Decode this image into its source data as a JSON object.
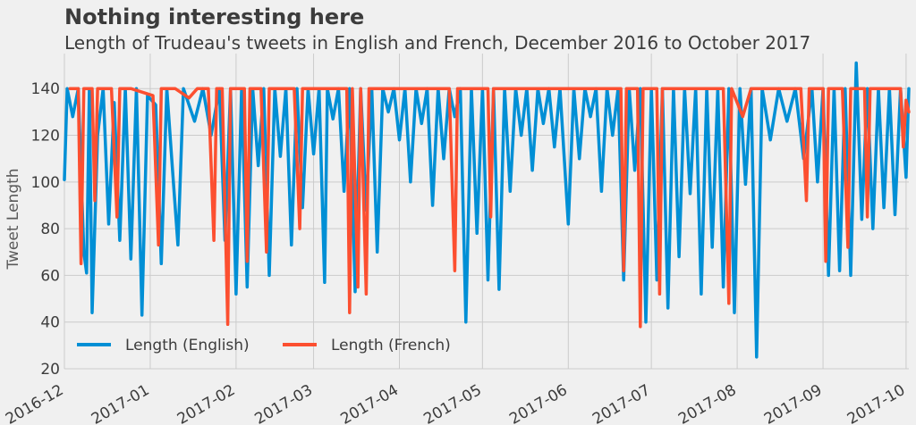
{
  "chart_data": {
    "type": "line",
    "title": "Nothing interesting here",
    "subtitle": "Length of Trudeau's tweets in English and French, December 2016 to October 2017",
    "ylabel": "Tweet Length",
    "xlabel": "",
    "ylim": [
      20,
      155
    ],
    "yticks": [
      20,
      40,
      60,
      80,
      100,
      120,
      140
    ],
    "xlim": [
      "2016-12-01",
      "2017-10-02"
    ],
    "xticks": [
      "2016-12",
      "2017-01",
      "2017-02",
      "2017-03",
      "2017-04",
      "2017-05",
      "2017-06",
      "2017-07",
      "2017-08",
      "2017-09",
      "2017-10"
    ],
    "grid": true,
    "legend": {
      "position": "bottom-left",
      "columns": 2
    },
    "colors": {
      "english": "#008fd5",
      "french": "#fc4f30"
    },
    "series": [
      {
        "name": "Length (English)",
        "color": "#008fd5",
        "points": [
          [
            "2016-12-01",
            101
          ],
          [
            "2016-12-02",
            140
          ],
          [
            "2016-12-04",
            128
          ],
          [
            "2016-12-06",
            140
          ],
          [
            "2016-12-08",
            70
          ],
          [
            "2016-12-09",
            61
          ],
          [
            "2016-12-10",
            140
          ],
          [
            "2016-12-11",
            44
          ],
          [
            "2016-12-13",
            120
          ],
          [
            "2016-12-15",
            140
          ],
          [
            "2016-12-17",
            82
          ],
          [
            "2016-12-19",
            134
          ],
          [
            "2016-12-21",
            75
          ],
          [
            "2016-12-23",
            140
          ],
          [
            "2016-12-25",
            67
          ],
          [
            "2016-12-27",
            140
          ],
          [
            "2016-12-29",
            43
          ],
          [
            "2016-12-31",
            137
          ],
          [
            "2017-01-03",
            133
          ],
          [
            "2017-01-05",
            65
          ],
          [
            "2017-01-07",
            140
          ],
          [
            "2017-01-09",
            106
          ],
          [
            "2017-01-11",
            73
          ],
          [
            "2017-01-13",
            140
          ],
          [
            "2017-01-17",
            126
          ],
          [
            "2017-01-20",
            140
          ],
          [
            "2017-01-23",
            120
          ],
          [
            "2017-01-26",
            140
          ],
          [
            "2017-01-28",
            75
          ],
          [
            "2017-01-30",
            140
          ],
          [
            "2017-02-01",
            52
          ],
          [
            "2017-02-03",
            140
          ],
          [
            "2017-02-05",
            55
          ],
          [
            "2017-02-07",
            140
          ],
          [
            "2017-02-09",
            107
          ],
          [
            "2017-02-11",
            140
          ],
          [
            "2017-02-13",
            60
          ],
          [
            "2017-02-15",
            140
          ],
          [
            "2017-02-17",
            111
          ],
          [
            "2017-02-19",
            140
          ],
          [
            "2017-02-21",
            73
          ],
          [
            "2017-02-23",
            140
          ],
          [
            "2017-02-25",
            89
          ],
          [
            "2017-02-27",
            140
          ],
          [
            "2017-03-01",
            112
          ],
          [
            "2017-03-03",
            140
          ],
          [
            "2017-03-05",
            57
          ],
          [
            "2017-03-06",
            140
          ],
          [
            "2017-03-08",
            127
          ],
          [
            "2017-03-10",
            140
          ],
          [
            "2017-03-12",
            96
          ],
          [
            "2017-03-14",
            140
          ],
          [
            "2017-03-16",
            53
          ],
          [
            "2017-03-18",
            140
          ],
          [
            "2017-03-20",
            88
          ],
          [
            "2017-03-22",
            140
          ],
          [
            "2017-03-24",
            70
          ],
          [
            "2017-03-26",
            140
          ],
          [
            "2017-03-28",
            130
          ],
          [
            "2017-03-30",
            140
          ],
          [
            "2017-04-01",
            118
          ],
          [
            "2017-04-03",
            140
          ],
          [
            "2017-04-05",
            100
          ],
          [
            "2017-04-07",
            140
          ],
          [
            "2017-04-09",
            125
          ],
          [
            "2017-04-11",
            140
          ],
          [
            "2017-04-13",
            90
          ],
          [
            "2017-04-15",
            140
          ],
          [
            "2017-04-17",
            110
          ],
          [
            "2017-04-19",
            140
          ],
          [
            "2017-04-21",
            128
          ],
          [
            "2017-04-23",
            140
          ],
          [
            "2017-04-25",
            40
          ],
          [
            "2017-04-27",
            140
          ],
          [
            "2017-04-29",
            78
          ],
          [
            "2017-05-01",
            140
          ],
          [
            "2017-05-03",
            58
          ],
          [
            "2017-05-05",
            140
          ],
          [
            "2017-05-07",
            54
          ],
          [
            "2017-05-09",
            140
          ],
          [
            "2017-05-11",
            96
          ],
          [
            "2017-05-13",
            140
          ],
          [
            "2017-05-15",
            120
          ],
          [
            "2017-05-17",
            140
          ],
          [
            "2017-05-19",
            105
          ],
          [
            "2017-05-21",
            140
          ],
          [
            "2017-05-23",
            125
          ],
          [
            "2017-05-25",
            140
          ],
          [
            "2017-05-27",
            115
          ],
          [
            "2017-05-29",
            140
          ],
          [
            "2017-06-01",
            82
          ],
          [
            "2017-06-03",
            140
          ],
          [
            "2017-06-05",
            110
          ],
          [
            "2017-06-07",
            140
          ],
          [
            "2017-06-09",
            128
          ],
          [
            "2017-06-11",
            140
          ],
          [
            "2017-06-13",
            96
          ],
          [
            "2017-06-15",
            140
          ],
          [
            "2017-06-17",
            120
          ],
          [
            "2017-06-19",
            140
          ],
          [
            "2017-06-21",
            58
          ],
          [
            "2017-06-23",
            140
          ],
          [
            "2017-06-25",
            105
          ],
          [
            "2017-06-27",
            140
          ],
          [
            "2017-06-29",
            40
          ],
          [
            "2017-07-01",
            140
          ],
          [
            "2017-07-03",
            58
          ],
          [
            "2017-07-05",
            140
          ],
          [
            "2017-07-07",
            46
          ],
          [
            "2017-07-09",
            140
          ],
          [
            "2017-07-11",
            68
          ],
          [
            "2017-07-13",
            140
          ],
          [
            "2017-07-15",
            95
          ],
          [
            "2017-07-17",
            140
          ],
          [
            "2017-07-19",
            52
          ],
          [
            "2017-07-21",
            140
          ],
          [
            "2017-07-23",
            72
          ],
          [
            "2017-07-25",
            140
          ],
          [
            "2017-07-27",
            55
          ],
          [
            "2017-07-29",
            140
          ],
          [
            "2017-07-31",
            44
          ],
          [
            "2017-08-02",
            140
          ],
          [
            "2017-08-04",
            99
          ],
          [
            "2017-08-06",
            140
          ],
          [
            "2017-08-08",
            25
          ],
          [
            "2017-08-10",
            140
          ],
          [
            "2017-08-13",
            118
          ],
          [
            "2017-08-16",
            140
          ],
          [
            "2017-08-19",
            126
          ],
          [
            "2017-08-22",
            140
          ],
          [
            "2017-08-25",
            110
          ],
          [
            "2017-08-28",
            140
          ],
          [
            "2017-08-30",
            100
          ],
          [
            "2017-09-01",
            140
          ],
          [
            "2017-09-03",
            60
          ],
          [
            "2017-09-05",
            140
          ],
          [
            "2017-09-07",
            62
          ],
          [
            "2017-09-09",
            140
          ],
          [
            "2017-09-11",
            60
          ],
          [
            "2017-09-13",
            151
          ],
          [
            "2017-09-15",
            84
          ],
          [
            "2017-09-17",
            140
          ],
          [
            "2017-09-19",
            80
          ],
          [
            "2017-09-21",
            140
          ],
          [
            "2017-09-23",
            89
          ],
          [
            "2017-09-25",
            140
          ],
          [
            "2017-09-27",
            86
          ],
          [
            "2017-09-29",
            140
          ],
          [
            "2017-10-01",
            102
          ],
          [
            "2017-10-02",
            140
          ]
        ]
      },
      {
        "name": "Length (French)",
        "color": "#fc4f30",
        "points": [
          [
            "2016-12-03",
            140
          ],
          [
            "2016-12-06",
            140
          ],
          [
            "2016-12-07",
            65
          ],
          [
            "2016-12-08",
            140
          ],
          [
            "2016-12-11",
            140
          ],
          [
            "2016-12-12",
            92
          ],
          [
            "2016-12-13",
            140
          ],
          [
            "2016-12-18",
            140
          ],
          [
            "2016-12-20",
            85
          ],
          [
            "2016-12-21",
            140
          ],
          [
            "2016-12-25",
            140
          ],
          [
            "2017-01-02",
            137
          ],
          [
            "2017-01-04",
            73
          ],
          [
            "2017-01-05",
            140
          ],
          [
            "2017-01-10",
            140
          ],
          [
            "2017-01-15",
            136
          ],
          [
            "2017-01-18",
            140
          ],
          [
            "2017-01-22",
            140
          ],
          [
            "2017-01-24",
            75
          ],
          [
            "2017-01-25",
            140
          ],
          [
            "2017-01-27",
            140
          ],
          [
            "2017-01-29",
            39
          ],
          [
            "2017-01-30",
            140
          ],
          [
            "2017-02-04",
            140
          ],
          [
            "2017-02-05",
            66
          ],
          [
            "2017-02-06",
            140
          ],
          [
            "2017-02-10",
            140
          ],
          [
            "2017-02-12",
            70
          ],
          [
            "2017-02-13",
            140
          ],
          [
            "2017-02-18",
            140
          ],
          [
            "2017-02-22",
            140
          ],
          [
            "2017-02-24",
            80
          ],
          [
            "2017-02-25",
            140
          ],
          [
            "2017-03-02",
            140
          ],
          [
            "2017-03-08",
            140
          ],
          [
            "2017-03-13",
            140
          ],
          [
            "2017-03-14",
            44
          ],
          [
            "2017-03-15",
            140
          ],
          [
            "2017-03-17",
            55
          ],
          [
            "2017-03-18",
            140
          ],
          [
            "2017-03-20",
            52
          ],
          [
            "2017-03-21",
            140
          ],
          [
            "2017-03-26",
            140
          ],
          [
            "2017-04-01",
            140
          ],
          [
            "2017-04-06",
            140
          ],
          [
            "2017-04-12",
            140
          ],
          [
            "2017-04-19",
            140
          ],
          [
            "2017-04-21",
            62
          ],
          [
            "2017-04-22",
            140
          ],
          [
            "2017-04-28",
            140
          ],
          [
            "2017-05-03",
            140
          ],
          [
            "2017-05-04",
            85
          ],
          [
            "2017-05-05",
            140
          ],
          [
            "2017-05-10",
            140
          ],
          [
            "2017-05-16",
            140
          ],
          [
            "2017-05-22",
            140
          ],
          [
            "2017-05-27",
            140
          ],
          [
            "2017-06-02",
            140
          ],
          [
            "2017-06-08",
            140
          ],
          [
            "2017-06-14",
            140
          ],
          [
            "2017-06-20",
            140
          ],
          [
            "2017-06-21",
            62
          ],
          [
            "2017-06-22",
            140
          ],
          [
            "2017-06-26",
            140
          ],
          [
            "2017-06-27",
            38
          ],
          [
            "2017-06-28",
            140
          ],
          [
            "2017-07-03",
            140
          ],
          [
            "2017-07-04",
            52
          ],
          [
            "2017-07-05",
            140
          ],
          [
            "2017-07-10",
            140
          ],
          [
            "2017-07-16",
            140
          ],
          [
            "2017-07-22",
            140
          ],
          [
            "2017-07-27",
            140
          ],
          [
            "2017-07-29",
            48
          ],
          [
            "2017-07-30",
            140
          ],
          [
            "2017-08-03",
            128
          ],
          [
            "2017-08-06",
            140
          ],
          [
            "2017-08-12",
            140
          ],
          [
            "2017-08-18",
            140
          ],
          [
            "2017-08-24",
            140
          ],
          [
            "2017-08-26",
            92
          ],
          [
            "2017-08-27",
            140
          ],
          [
            "2017-09-01",
            140
          ],
          [
            "2017-09-02",
            66
          ],
          [
            "2017-09-03",
            140
          ],
          [
            "2017-09-08",
            140
          ],
          [
            "2017-09-10",
            72
          ],
          [
            "2017-09-11",
            140
          ],
          [
            "2017-09-16",
            140
          ],
          [
            "2017-09-17",
            85
          ],
          [
            "2017-09-18",
            140
          ],
          [
            "2017-09-23",
            140
          ],
          [
            "2017-09-29",
            140
          ],
          [
            "2017-09-30",
            115
          ],
          [
            "2017-10-01",
            135
          ],
          [
            "2017-10-02",
            130
          ]
        ]
      }
    ]
  }
}
